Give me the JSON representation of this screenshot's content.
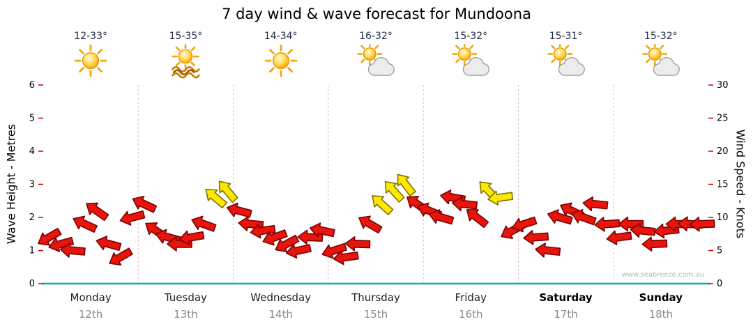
{
  "days": [
    {
      "name": "Monday",
      "date": "12th",
      "temp": "12-33°",
      "icon": "sunny",
      "bold": false
    },
    {
      "name": "Tuesday",
      "date": "13th",
      "temp": "15-35°",
      "icon": "sunny-waves",
      "bold": false
    },
    {
      "name": "Wednesday",
      "date": "14th",
      "temp": "14-34°",
      "icon": "sunny",
      "bold": false
    },
    {
      "name": "Thursday",
      "date": "15th",
      "temp": "16-32°",
      "icon": "partly-cloudy",
      "bold": false
    },
    {
      "name": "Friday",
      "date": "16th",
      "temp": "15-32°",
      "icon": "partly-cloudy",
      "bold": false
    },
    {
      "name": "Saturday",
      "date": "17th",
      "temp": "15-31°",
      "icon": "partly-cloudy",
      "bold": true
    },
    {
      "name": "Sunday",
      "date": "18th",
      "temp": "15-32°",
      "icon": "partly-cloudy",
      "bold": true
    }
  ],
  "watermark": "www.seabreeze.com.au",
  "chart_data": {
    "type": "wind-arrows",
    "title": "7 day wind & wave forecast for Mundoona",
    "left_axis": {
      "label": "Wave Height - Metres",
      "min": 0,
      "max": 6,
      "tick_step": 1
    },
    "right_axis": {
      "label": "Wind Speed - Knots",
      "min": 0,
      "max": 30,
      "tick_step": 5
    },
    "categories": [
      "Monday 12th",
      "Tuesday 13th",
      "Wednesday 14th",
      "Thursday 15th",
      "Friday 16th",
      "Saturday 17th",
      "Sunday 18th"
    ],
    "interval_hours": 3,
    "wind_knots": [
      7,
      6,
      5,
      9,
      11,
      6,
      4,
      10,
      12,
      8,
      7,
      6,
      7,
      9,
      13,
      14,
      11,
      9,
      8,
      7,
      6,
      5,
      7,
      8,
      5,
      4,
      6,
      9,
      12,
      14,
      15,
      12,
      11,
      10,
      13,
      12,
      10,
      14,
      13,
      8,
      9,
      7,
      5,
      10,
      11,
      10,
      12,
      9,
      7,
      9,
      8,
      6,
      8,
      9,
      9,
      9
    ],
    "wind_dir_deg": [
      150,
      165,
      185,
      205,
      215,
      195,
      150,
      165,
      205,
      215,
      195,
      180,
      170,
      200,
      220,
      230,
      195,
      185,
      172,
      160,
      152,
      168,
      182,
      192,
      162,
      172,
      182,
      210,
      222,
      228,
      232,
      215,
      202,
      196,
      190,
      186,
      218,
      226,
      172,
      152,
      162,
      176,
      186,
      196,
      206,
      200,
      186,
      176,
      172,
      180,
      186,
      178,
      174,
      180,
      183,
      178
    ],
    "arrow_color": [
      "r",
      "r",
      "r",
      "r",
      "r",
      "r",
      "r",
      "r",
      "r",
      "r",
      "r",
      "r",
      "r",
      "r",
      "y",
      "y",
      "r",
      "r",
      "r",
      "r",
      "r",
      "r",
      "r",
      "r",
      "r",
      "r",
      "r",
      "r",
      "y",
      "y",
      "y",
      "r",
      "r",
      "r",
      "r",
      "r",
      "r",
      "y",
      "y",
      "r",
      "r",
      "r",
      "r",
      "r",
      "r",
      "r",
      "r",
      "r",
      "r",
      "r",
      "r",
      "r",
      "r",
      "r",
      "r",
      "r"
    ],
    "colors": {
      "arrow_red": "#e8150d",
      "arrow_red_outline": "#7a0000",
      "arrow_yellow": "#ffe800",
      "arrow_yellow_outline": "#7c7000",
      "axis_teal": "#00b0b0",
      "tick_red": "#cc0000",
      "separator": "#dcc0c0"
    }
  }
}
